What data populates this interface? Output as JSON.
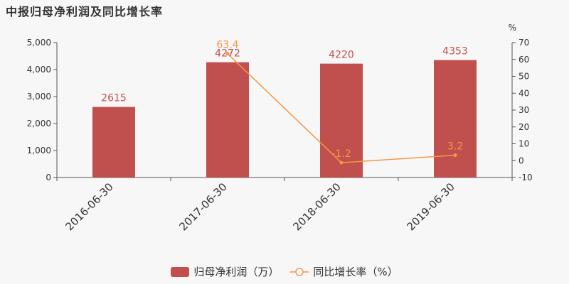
{
  "title": "中报归母净利润及同比增长率",
  "chart_data": {
    "type": "bar",
    "categories": [
      "2016-06-30",
      "2017-06-30",
      "2018-06-30",
      "2019-06-30"
    ],
    "series": [
      {
        "name": "归母净利润（万）",
        "type": "bar",
        "axis": "left",
        "values": [
          2615,
          4272,
          4220,
          4353
        ],
        "labels": [
          "2615",
          "4272",
          "4220",
          "4353"
        ],
        "color": "#c0504d"
      },
      {
        "name": "同比增长率（%）",
        "type": "line",
        "axis": "right",
        "values": [
          null,
          63.4,
          -1.2,
          3.2
        ],
        "labels": [
          "",
          "63.4",
          "-1.2",
          "3.2"
        ],
        "color": "#f79646"
      }
    ],
    "y_left": {
      "min": 0,
      "max": 5000,
      "ticks": [
        0,
        1000,
        2000,
        3000,
        4000,
        5000
      ],
      "tick_labels": [
        "0",
        "1,000",
        "2,000",
        "3,000",
        "4,000",
        "5,000"
      ]
    },
    "y_right": {
      "unit": "%",
      "min": -10,
      "max": 70,
      "ticks": [
        -10,
        0,
        10,
        20,
        30,
        40,
        50,
        60,
        70
      ],
      "tick_labels": [
        "-10",
        "0",
        "10",
        "20",
        "30",
        "40",
        "50",
        "60",
        "70"
      ]
    },
    "grid": false,
    "legend_position": "bottom"
  },
  "legend": {
    "bar_label": "归母净利润（万）",
    "line_label": "同比增长率（%）"
  }
}
